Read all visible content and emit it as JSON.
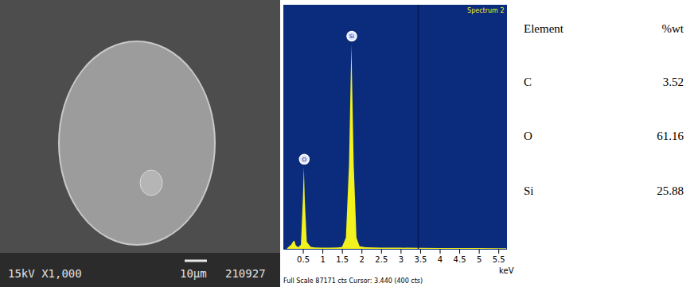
{
  "sem_image": {
    "acquisition": "15kV X1,000",
    "scale_bar": "10μm",
    "image_id": "210927"
  },
  "chart_data": {
    "type": "area",
    "title": "Spectrum 2",
    "x_label": "keV",
    "x": [
      0.1,
      0.2,
      0.25,
      0.28,
      0.32,
      0.38,
      0.45,
      0.5,
      0.525,
      0.55,
      0.6,
      0.7,
      0.8,
      1.0,
      1.2,
      1.4,
      1.5,
      1.6,
      1.68,
      1.74,
      1.8,
      1.87,
      1.95,
      2.1,
      2.5,
      3.0,
      3.5,
      4.0,
      4.5,
      5.0,
      5.5,
      5.7
    ],
    "values": [
      300,
      1500,
      2600,
      3000,
      1200,
      600,
      1500,
      18000,
      29000,
      17000,
      2500,
      700,
      500,
      450,
      450,
      500,
      700,
      4000,
      30000,
      73000,
      30000,
      4000,
      900,
      550,
      450,
      400,
      350,
      300,
      280,
      250,
      230,
      220
    ],
    "color": "#f2f21f",
    "xlim": [
      0,
      5.7
    ],
    "xticks": [
      0.5,
      1,
      1.5,
      2,
      2.5,
      3,
      3.5,
      4,
      4.5,
      5,
      5.5
    ],
    "ylim": [
      0,
      87171
    ],
    "tick_labels": "x",
    "peaks": [
      {
        "label": "O",
        "x": 0.525
      },
      {
        "label": "Si",
        "x": 1.74
      }
    ],
    "cursor_x": 3.44,
    "footer": "Full Scale 87171 cts Cursor: 3.440 (400 cts)"
  },
  "table": {
    "columns": [
      "Element",
      "%wt"
    ],
    "rows": [
      [
        "C",
        3.52
      ],
      [
        "O",
        61.16
      ],
      [
        "Si",
        25.88
      ]
    ]
  }
}
